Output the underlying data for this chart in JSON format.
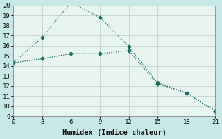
{
  "xlabel": "Humidex (Indice chaleur)",
  "bg_outer": "#c8e8e8",
  "bg_plot": "#e8f4f0",
  "grid_color": "#c8d8d0",
  "line_color": "#1a6b60",
  "series1_x": [
    0,
    3,
    6,
    9,
    12,
    15,
    18,
    21
  ],
  "series1_y": [
    14.3,
    16.8,
    20.3,
    18.8,
    15.9,
    12.3,
    11.3,
    9.5
  ],
  "series2_x": [
    0,
    3,
    6,
    9,
    12,
    15,
    18,
    21
  ],
  "series2_y": [
    14.3,
    14.7,
    15.2,
    15.2,
    15.5,
    12.2,
    11.3,
    9.5
  ],
  "xlim": [
    0,
    21
  ],
  "ylim": [
    9,
    20
  ],
  "xticks": [
    0,
    3,
    6,
    9,
    12,
    15,
    18,
    21
  ],
  "yticks": [
    9,
    10,
    11,
    12,
    13,
    14,
    15,
    16,
    17,
    18,
    19,
    20
  ],
  "axis_fontsize": 7.5,
  "tick_fontsize": 6.5
}
